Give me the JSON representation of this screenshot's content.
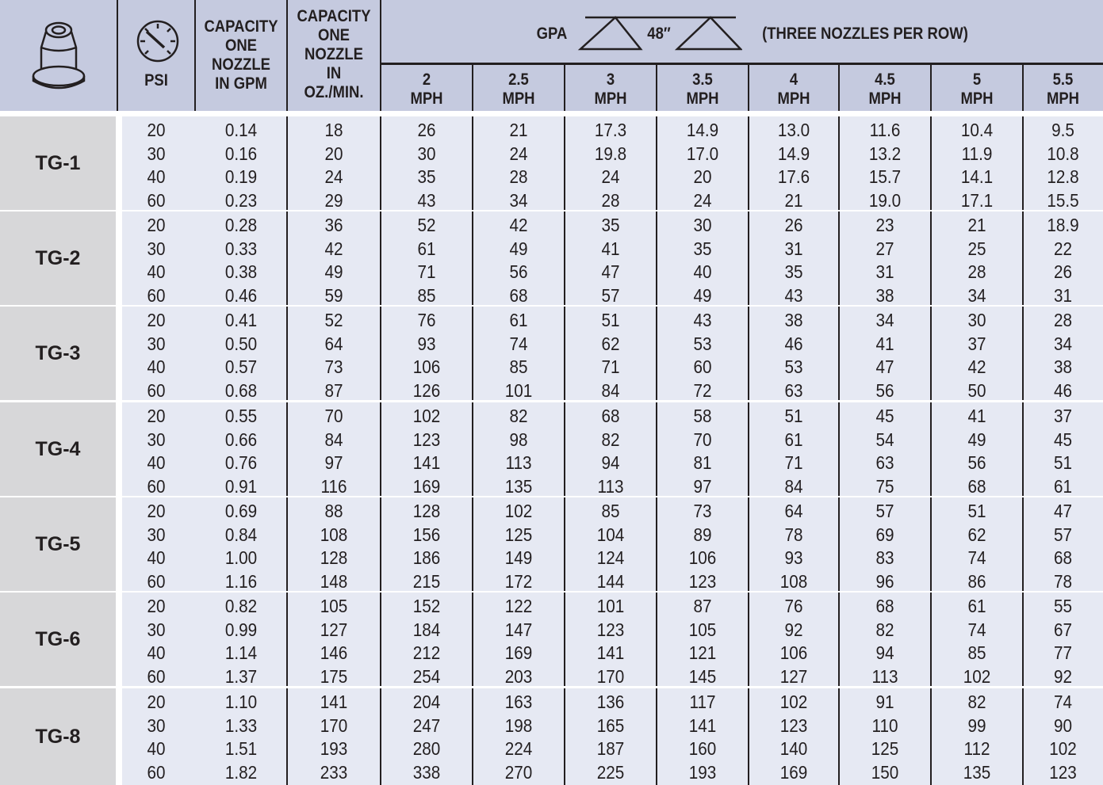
{
  "header": {
    "psi_label": "PSI",
    "capacity_gpm_label": [
      "CAPACITY",
      "ONE",
      "NOZZLE",
      "IN GPM"
    ],
    "capacity_oz_label": [
      "CAPACITY",
      "ONE",
      "NOZZLE",
      "IN",
      "OZ./MIN."
    ],
    "gpa_label": "GPA",
    "spacing_label": "48″",
    "nozzles_note": "(THREE NOZZLES PER ROW)",
    "speeds": [
      {
        "value": "2",
        "unit": "MPH"
      },
      {
        "value": "2.5",
        "unit": "MPH"
      },
      {
        "value": "3",
        "unit": "MPH"
      },
      {
        "value": "3.5",
        "unit": "MPH"
      },
      {
        "value": "4",
        "unit": "MPH"
      },
      {
        "value": "4.5",
        "unit": "MPH"
      },
      {
        "value": "5",
        "unit": "MPH"
      },
      {
        "value": "5.5",
        "unit": "MPH"
      }
    ],
    "icons": {
      "nozzle": "nozzle-tip-icon",
      "gauge": "pressure-gauge-icon",
      "spray": "spray-pattern-icon"
    }
  },
  "colors": {
    "header_bg": "#c5cadf",
    "body_bg": "#e6e9f3",
    "model_bg": "#d7d7d9",
    "lines": "#231f20"
  },
  "groups": [
    {
      "model": "TG-1",
      "rows": [
        [
          "20",
          "0.14",
          "18",
          "26",
          "21",
          "17.3",
          "14.9",
          "13.0",
          "11.6",
          "10.4",
          "9.5"
        ],
        [
          "30",
          "0.16",
          "20",
          "30",
          "24",
          "19.8",
          "17.0",
          "14.9",
          "13.2",
          "11.9",
          "10.8"
        ],
        [
          "40",
          "0.19",
          "24",
          "35",
          "28",
          "24",
          "20",
          "17.6",
          "15.7",
          "14.1",
          "12.8"
        ],
        [
          "60",
          "0.23",
          "29",
          "43",
          "34",
          "28",
          "24",
          "21",
          "19.0",
          "17.1",
          "15.5"
        ]
      ]
    },
    {
      "model": "TG-2",
      "rows": [
        [
          "20",
          "0.28",
          "36",
          "52",
          "42",
          "35",
          "30",
          "26",
          "23",
          "21",
          "18.9"
        ],
        [
          "30",
          "0.33",
          "42",
          "61",
          "49",
          "41",
          "35",
          "31",
          "27",
          "25",
          "22"
        ],
        [
          "40",
          "0.38",
          "49",
          "71",
          "56",
          "47",
          "40",
          "35",
          "31",
          "28",
          "26"
        ],
        [
          "60",
          "0.46",
          "59",
          "85",
          "68",
          "57",
          "49",
          "43",
          "38",
          "34",
          "31"
        ]
      ]
    },
    {
      "model": "TG-3",
      "rows": [
        [
          "20",
          "0.41",
          "52",
          "76",
          "61",
          "51",
          "43",
          "38",
          "34",
          "30",
          "28"
        ],
        [
          "30",
          "0.50",
          "64",
          "93",
          "74",
          "62",
          "53",
          "46",
          "41",
          "37",
          "34"
        ],
        [
          "40",
          "0.57",
          "73",
          "106",
          "85",
          "71",
          "60",
          "53",
          "47",
          "42",
          "38"
        ],
        [
          "60",
          "0.68",
          "87",
          "126",
          "101",
          "84",
          "72",
          "63",
          "56",
          "50",
          "46"
        ]
      ]
    },
    {
      "model": "TG-4",
      "rows": [
        [
          "20",
          "0.55",
          "70",
          "102",
          "82",
          "68",
          "58",
          "51",
          "45",
          "41",
          "37"
        ],
        [
          "30",
          "0.66",
          "84",
          "123",
          "98",
          "82",
          "70",
          "61",
          "54",
          "49",
          "45"
        ],
        [
          "40",
          "0.76",
          "97",
          "141",
          "113",
          "94",
          "81",
          "71",
          "63",
          "56",
          "51"
        ],
        [
          "60",
          "0.91",
          "116",
          "169",
          "135",
          "113",
          "97",
          "84",
          "75",
          "68",
          "61"
        ]
      ]
    },
    {
      "model": "TG-5",
      "rows": [
        [
          "20",
          "0.69",
          "88",
          "128",
          "102",
          "85",
          "73",
          "64",
          "57",
          "51",
          "47"
        ],
        [
          "30",
          "0.84",
          "108",
          "156",
          "125",
          "104",
          "89",
          "78",
          "69",
          "62",
          "57"
        ],
        [
          "40",
          "1.00",
          "128",
          "186",
          "149",
          "124",
          "106",
          "93",
          "83",
          "74",
          "68"
        ],
        [
          "60",
          "1.16",
          "148",
          "215",
          "172",
          "144",
          "123",
          "108",
          "96",
          "86",
          "78"
        ]
      ]
    },
    {
      "model": "TG-6",
      "rows": [
        [
          "20",
          "0.82",
          "105",
          "152",
          "122",
          "101",
          "87",
          "76",
          "68",
          "61",
          "55"
        ],
        [
          "30",
          "0.99",
          "127",
          "184",
          "147",
          "123",
          "105",
          "92",
          "82",
          "74",
          "67"
        ],
        [
          "40",
          "1.14",
          "146",
          "212",
          "169",
          "141",
          "121",
          "106",
          "94",
          "85",
          "77"
        ],
        [
          "60",
          "1.37",
          "175",
          "254",
          "203",
          "170",
          "145",
          "127",
          "113",
          "102",
          "92"
        ]
      ]
    },
    {
      "model": "TG-8",
      "rows": [
        [
          "20",
          "1.10",
          "141",
          "204",
          "163",
          "136",
          "117",
          "102",
          "91",
          "82",
          "74"
        ],
        [
          "30",
          "1.33",
          "170",
          "247",
          "198",
          "165",
          "141",
          "123",
          "110",
          "99",
          "90"
        ],
        [
          "40",
          "1.51",
          "193",
          "280",
          "224",
          "187",
          "160",
          "140",
          "125",
          "112",
          "102"
        ],
        [
          "60",
          "1.82",
          "233",
          "338",
          "270",
          "225",
          "193",
          "169",
          "150",
          "135",
          "123"
        ]
      ]
    }
  ]
}
